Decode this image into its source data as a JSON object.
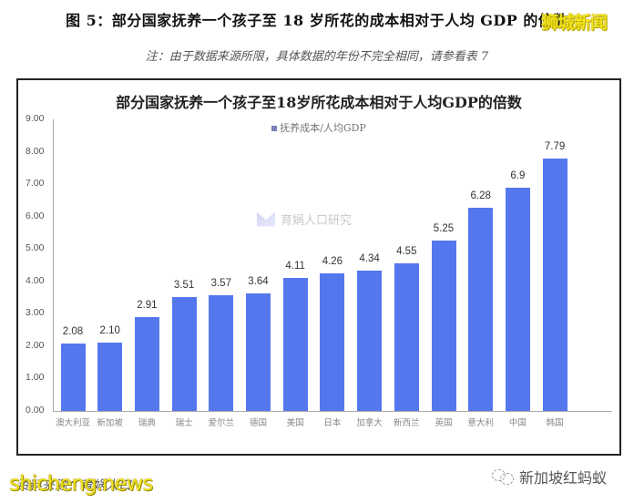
{
  "figure": {
    "title": "图 5：部分国家抚养一个孩子至 18 岁所花的成本相对于人均 GDP 的倍数",
    "note": "注：由于数据来源所限，具体数据的年份不完全相同，请参看表 7",
    "source": "资料来源：育娲人口"
  },
  "watermarks": {
    "top_right": "狮城新闻",
    "center": "育娲人口研究",
    "bottom_left": "shicheng.news",
    "bottom_right": "新加坡红蚂蚁"
  },
  "colors": {
    "bar": "#5577ee",
    "legend_swatch": "#7a7fb8",
    "watermark_yellow": "#f0e020"
  },
  "chart_data": {
    "type": "bar",
    "title": "部分国家抚养一个孩子至18岁所花成本相对于人均GDP的倍数",
    "xlabel": "",
    "ylabel": "",
    "legend": [
      "抚养成本/人均GDP"
    ],
    "legend_position": "top",
    "grid": false,
    "ylim": [
      0,
      9
    ],
    "yticks": [
      "0.00",
      "1.00",
      "2.00",
      "3.00",
      "4.00",
      "5.00",
      "6.00",
      "7.00",
      "8.00",
      "9.00"
    ],
    "categories": [
      "澳大利亚",
      "新加坡",
      "瑞典",
      "瑞士",
      "爱尔兰",
      "德国",
      "美国",
      "日本",
      "加拿大",
      "新西兰",
      "英国",
      "意大利",
      "中国",
      "韩国"
    ],
    "values": [
      2.08,
      2.1,
      2.91,
      3.51,
      3.57,
      3.64,
      4.11,
      4.26,
      4.34,
      4.55,
      5.25,
      6.28,
      6.9,
      7.79
    ],
    "value_labels": [
      "2.08",
      "2.10",
      "2.91",
      "3.51",
      "3.57",
      "3.64",
      "4.11",
      "4.26",
      "4.34",
      "4.55",
      "5.25",
      "6.28",
      "6.9",
      "7.79"
    ],
    "series": [
      {
        "name": "抚养成本/人均GDP",
        "values": [
          2.08,
          2.1,
          2.91,
          3.51,
          3.57,
          3.64,
          4.11,
          4.26,
          4.34,
          4.55,
          5.25,
          6.28,
          6.9,
          7.79
        ]
      }
    ]
  }
}
